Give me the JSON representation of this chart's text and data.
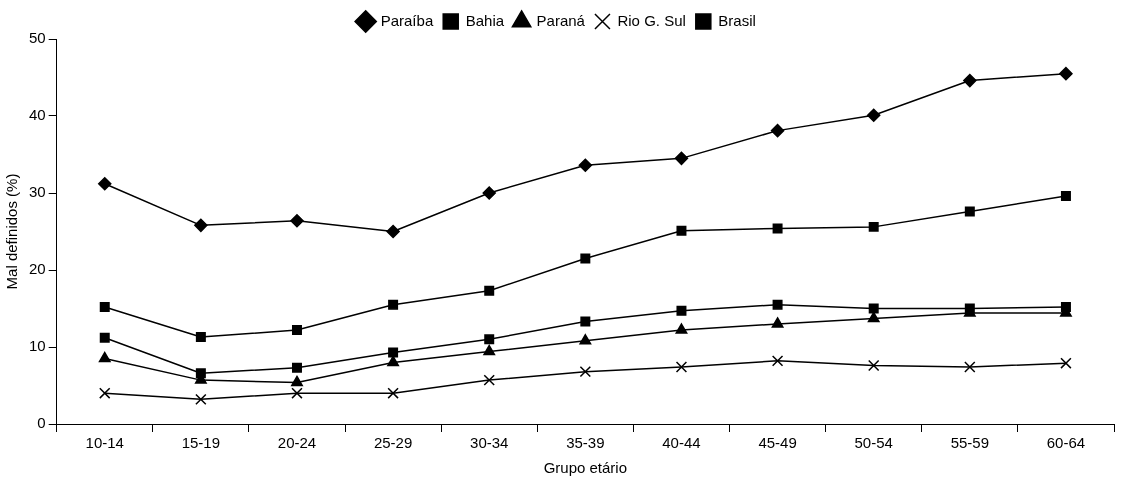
{
  "chart_data": {
    "type": "line",
    "xlabel": "Grupo etário",
    "ylabel": "Mal definidos (%)",
    "categories": [
      "10-14",
      "15-19",
      "20-24",
      "25-29",
      "30-34",
      "35-39",
      "40-44",
      "45-49",
      "50-54",
      "55-59",
      "60-64"
    ],
    "ylim": [
      0,
      50
    ],
    "yticks": [
      0,
      10,
      20,
      30,
      40,
      50
    ],
    "grid": false,
    "legend": "top",
    "line_style": "solid",
    "series": [
      {
        "name": "Paraíba",
        "color": "#000000",
        "marker": "diamond",
        "values": [
          31.2,
          25.8,
          26.4,
          25.0,
          30.0,
          33.6,
          34.5,
          38.1,
          40.1,
          44.6,
          45.5
        ]
      },
      {
        "name": "Bahia",
        "color": "#000000",
        "marker": "square",
        "values": [
          15.2,
          11.3,
          12.2,
          15.5,
          17.3,
          21.5,
          25.1,
          25.4,
          25.6,
          27.6,
          29.6
        ]
      },
      {
        "name": "Paraná",
        "color": "#000000",
        "marker": "triangle",
        "values": [
          8.5,
          5.7,
          5.4,
          8.0,
          9.4,
          10.8,
          12.2,
          13.0,
          13.7,
          14.4,
          14.4
        ]
      },
      {
        "name": "Rio G. Sul",
        "color": "#000000",
        "marker": "cross",
        "values": [
          4.0,
          3.2,
          4.0,
          4.0,
          5.7,
          6.8,
          7.4,
          8.2,
          7.6,
          7.4,
          7.9
        ]
      },
      {
        "name": "Brasil",
        "color": "#000000",
        "marker": "square",
        "values": [
          11.2,
          6.6,
          7.3,
          9.3,
          11.0,
          13.3,
          14.7,
          15.5,
          15.0,
          15.0,
          15.2
        ]
      }
    ]
  }
}
